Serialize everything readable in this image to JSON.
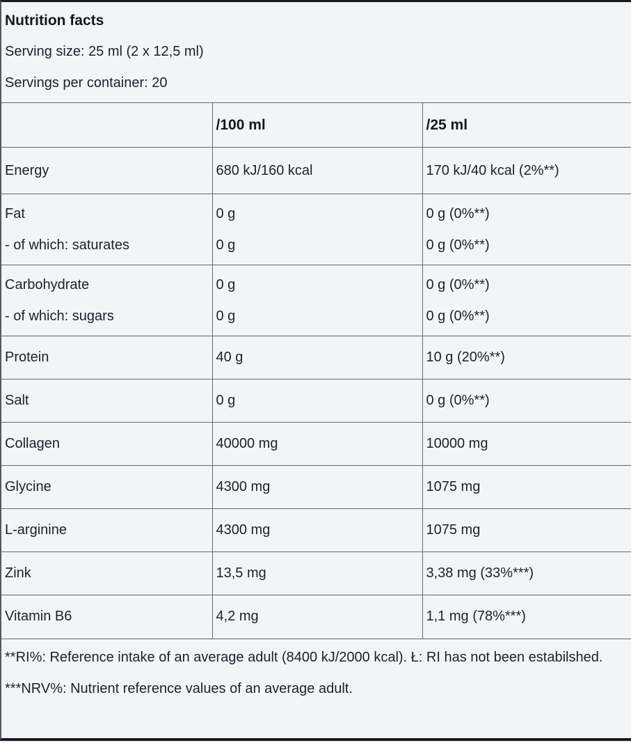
{
  "title": "Nutrition facts",
  "serving_size": "Serving size: 25 ml (2 x 12,5 ml)",
  "servings_per_container": "Servings per container: 20",
  "table": {
    "columns": {
      "name": "",
      "per_100ml": "/100 ml",
      "per_25ml": "/25 ml"
    },
    "rows": [
      {
        "name": "Energy",
        "per_100ml": "680 kJ/160 kcal",
        "per_25ml": "170 kJ/40 kcal (2%**)"
      },
      {
        "name": "Fat",
        "per_100ml": "0 g",
        "per_25ml": "0 g (0%**)",
        "sub_name": "- of which: saturates",
        "sub_per_100ml": "0 g",
        "sub_per_25ml": "0 g (0%**)"
      },
      {
        "name": "Carbohydrate",
        "per_100ml": "0 g",
        "per_25ml": "0 g (0%**)",
        "sub_name": "- of which: sugars",
        "sub_per_100ml": "0 g",
        "sub_per_25ml": "0 g (0%**)"
      },
      {
        "name": "Protein",
        "per_100ml": "40 g",
        "per_25ml": "10 g (20%**)"
      },
      {
        "name": "Salt",
        "per_100ml": "0 g",
        "per_25ml": "0 g (0%**)"
      },
      {
        "name": "Collagen",
        "per_100ml": "40000 mg",
        "per_25ml": "10000 mg"
      },
      {
        "name": "Glycine",
        "per_100ml": "4300 mg",
        "per_25ml": "1075 mg"
      },
      {
        "name": "L-arginine",
        "per_100ml": "4300 mg",
        "per_25ml": "1075 mg"
      },
      {
        "name": "Zink",
        "per_100ml": "13,5 mg",
        "per_25ml": "3,38 mg (33%***)"
      },
      {
        "name": "Vitamin B6",
        "per_100ml": "4,2 mg",
        "per_25ml": "1,1 mg (78%***)"
      }
    ]
  },
  "footnotes": [
    "**RI%: Reference intake of an average adult (8400 kJ/2000 kcal). Ł: RI has not been estabilshed.",
    "***NRV%: Nutrient reference values of an average adult."
  ],
  "colors": {
    "text": "#1e202b",
    "background": "#f3f4f6",
    "grid_line": "#63666d",
    "frame_line": "#191b24"
  }
}
